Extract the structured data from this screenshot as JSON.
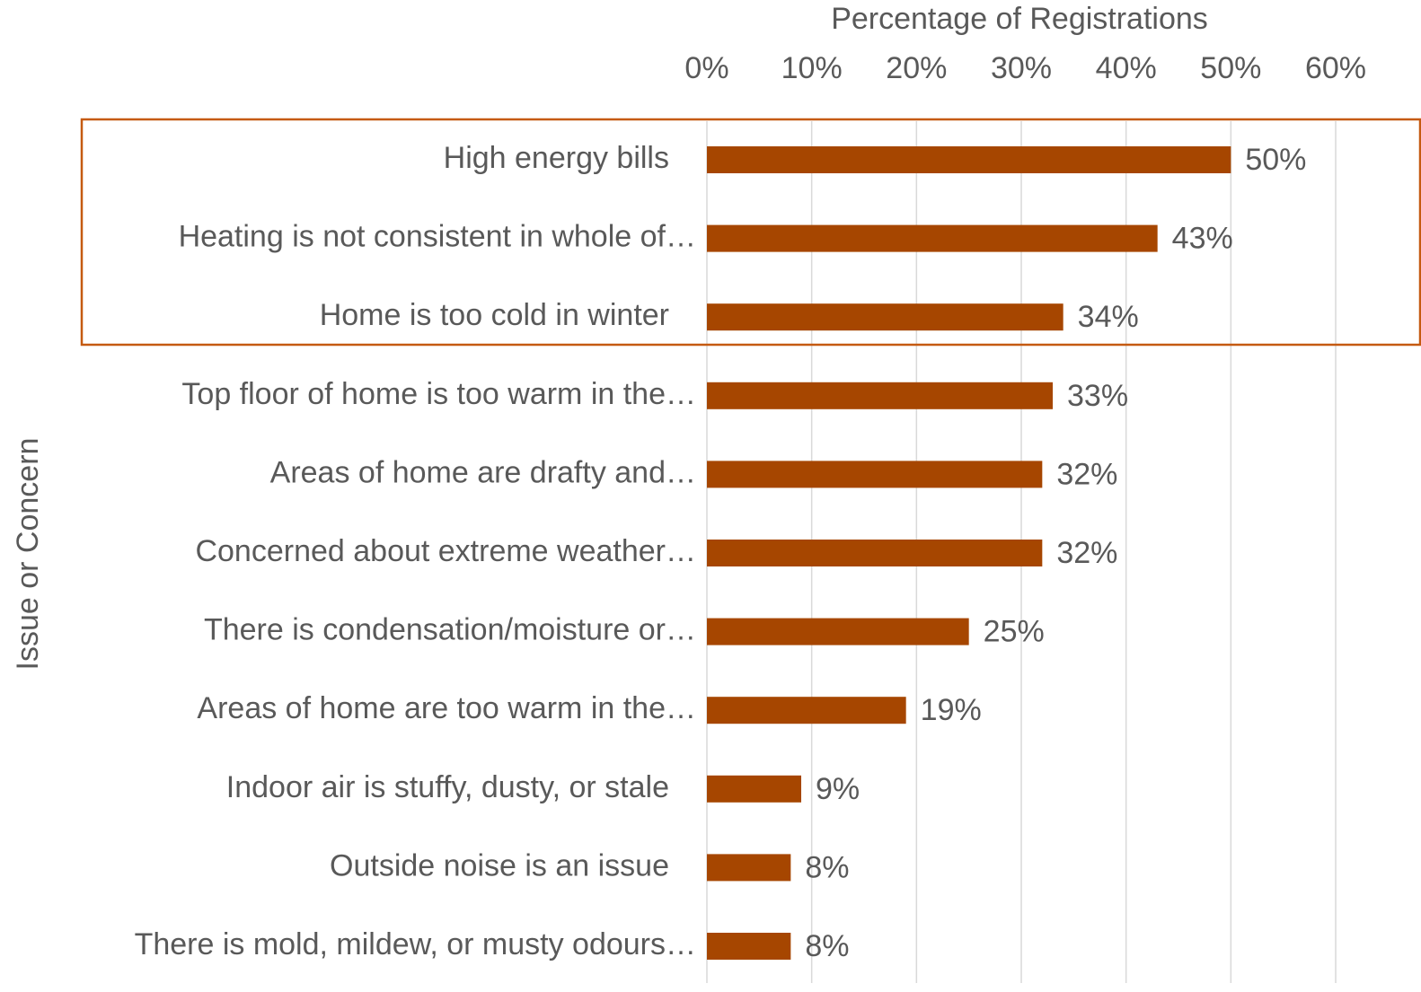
{
  "chart_data": {
    "type": "bar",
    "orientation": "horizontal",
    "x_axis_title": "Percentage of Registrations",
    "y_axis_title": "Issue or Concern",
    "categories": [
      "High energy bills",
      "Heating is not consistent in whole of…",
      "Home is too cold in winter",
      "Top floor of home is too warm in the…",
      "Areas of home are drafty and…",
      "Concerned about extreme weather…",
      "There is condensation/moisture or…",
      "Areas of home are too warm in the…",
      "Indoor air is stuffy, dusty, or stale",
      "Outside noise is an issue",
      "There is mold, mildew, or musty odours…"
    ],
    "values": [
      50,
      43,
      34,
      33,
      32,
      32,
      25,
      19,
      9,
      8,
      8
    ],
    "value_labels": [
      "50%",
      "43%",
      "34%",
      "33%",
      "32%",
      "32%",
      "25%",
      "19%",
      "9%",
      "8%",
      "8%"
    ],
    "color": "#a64600",
    "xlim": [
      0,
      60
    ],
    "xticks": [
      {
        "value": 0,
        "label": "0%"
      },
      {
        "value": 10,
        "label": "10%"
      },
      {
        "value": 20,
        "label": "20%"
      },
      {
        "value": 30,
        "label": "30%"
      },
      {
        "value": 40,
        "label": "40%"
      },
      {
        "value": 50,
        "label": "50%"
      },
      {
        "value": 60,
        "label": "60%"
      }
    ],
    "grid": true
  }
}
